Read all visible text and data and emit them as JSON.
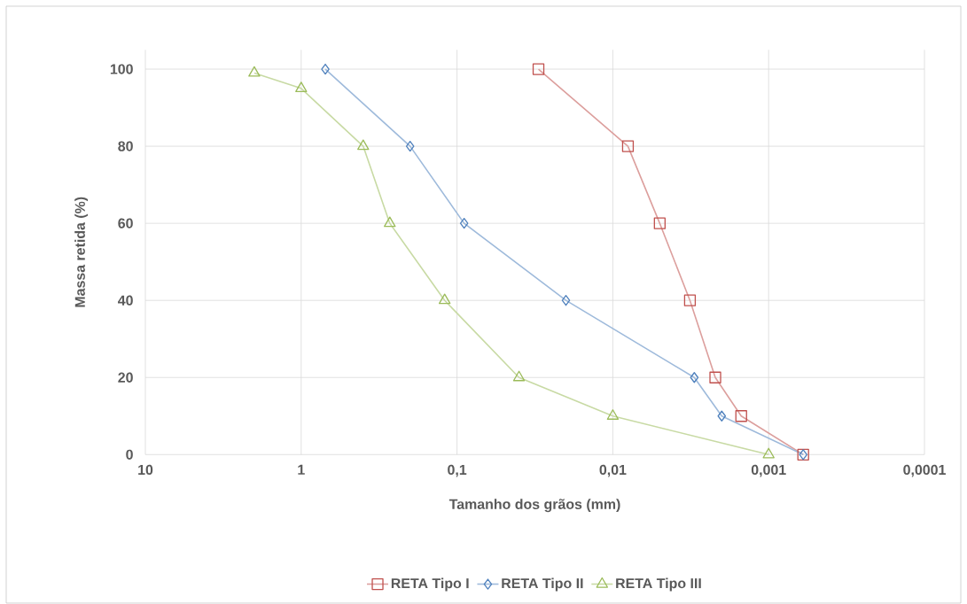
{
  "chart_data": {
    "type": "line",
    "xlabel": "Tamanho dos grãos (mm)",
    "ylabel": "Massa retida (%)",
    "log": "x",
    "grid": true,
    "legend": "bottom",
    "line_style": "solid",
    "xlim": [
      10,
      0.0001
    ],
    "ylim": [
      0,
      105
    ],
    "xticks": [
      {
        "value": 10,
        "label": "10"
      },
      {
        "value": 1,
        "label": "1"
      },
      {
        "value": 0.1,
        "label": "0,1"
      },
      {
        "value": 0.01,
        "label": "0,01"
      },
      {
        "value": 0.001,
        "label": "0,001"
      },
      {
        "value": 0.0001,
        "label": "0,0001"
      }
    ],
    "yticks": [
      0,
      20,
      40,
      60,
      80,
      100
    ],
    "series": [
      {
        "name": "RETA Tipo I",
        "color": "#c0504d",
        "marker": "square",
        "x": [
          0.03,
          0.008,
          0.005,
          0.0032,
          0.0022,
          0.0015,
          0.0006
        ],
        "values": [
          100,
          80,
          60,
          40,
          20,
          10,
          0
        ]
      },
      {
        "name": "RETA Tipo II",
        "color": "#4f81bd",
        "marker": "diamond",
        "x": [
          0.7,
          0.2,
          0.09,
          0.02,
          0.003,
          0.002,
          0.0006
        ],
        "values": [
          100,
          80,
          60,
          40,
          20,
          10,
          0
        ]
      },
      {
        "name": "RETA Tipo III",
        "color": "#9bbb59",
        "marker": "triangle",
        "x": [
          2,
          1,
          0.4,
          0.27,
          0.12,
          0.04,
          0.01,
          0.001
        ],
        "values": [
          99,
          95,
          80,
          60,
          40,
          20,
          10,
          0
        ]
      }
    ]
  }
}
